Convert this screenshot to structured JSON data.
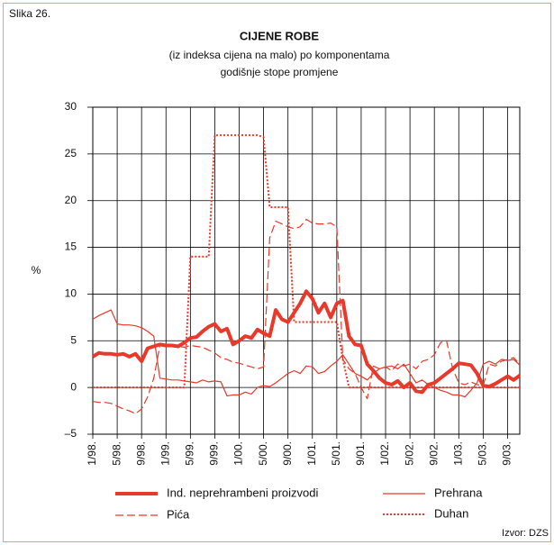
{
  "figure_label": "Slika 26.",
  "source": "Izvor: DZS",
  "chart_data": {
    "type": "line",
    "title": "CIJENE ROBE",
    "subtitle": [
      "(iz indeksa cijena na malo) po komponentama",
      "godišnje stope promjene"
    ],
    "y_label": "%",
    "categories": [
      "1/98.",
      null,
      null,
      null,
      "5/98.",
      null,
      null,
      null,
      "9/98.",
      null,
      null,
      null,
      "1/99.",
      null,
      null,
      null,
      "5/99.",
      null,
      null,
      null,
      "9/99.",
      null,
      null,
      null,
      "1/00.",
      null,
      null,
      null,
      "5/00.",
      null,
      null,
      null,
      "9/00.",
      null,
      null,
      null,
      "1/01.",
      null,
      null,
      null,
      "5/01.",
      null,
      null,
      null,
      "9/01.",
      null,
      null,
      null,
      "1/02.",
      null,
      null,
      null,
      "5/02.",
      null,
      null,
      null,
      "9/02.",
      null,
      null,
      null,
      "1/03.",
      null,
      null,
      null,
      "5/03.",
      null,
      null,
      null,
      "9/03.",
      null,
      null
    ],
    "ylim": [
      -5,
      30
    ],
    "yticks": [
      {
        "value": -5,
        "label": "–5"
      },
      0,
      5,
      10,
      15,
      20,
      25,
      30
    ],
    "grid": true,
    "series": [
      {
        "name": "Ind. neprehrambeni proizvodi",
        "color": "#e8392a",
        "style": "solid",
        "width": 4,
        "values": [
          3.3,
          3.7,
          3.6,
          3.6,
          3.5,
          3.6,
          3.3,
          3.6,
          2.8,
          4.2,
          4.4,
          4.6,
          4.5,
          4.5,
          4.4,
          4.8,
          5.3,
          5.4,
          6.0,
          6.5,
          6.8,
          6.0,
          6.3,
          4.6,
          5.0,
          5.5,
          5.3,
          6.2,
          5.8,
          5.5,
          8.3,
          7.3,
          7.0,
          8.0,
          9.0,
          10.3,
          9.5,
          8.0,
          9.0,
          7.5,
          9.0,
          9.3,
          5.5,
          4.6,
          4.5,
          2.5,
          1.8,
          1.0,
          0.5,
          0.3,
          0.7,
          0.0,
          0.5,
          -0.4,
          -0.5,
          0.3,
          0.5,
          1.0,
          1.5,
          2.0,
          2.6,
          2.5,
          2.4,
          1.5,
          0.2,
          0.1,
          0.4,
          0.8,
          1.2,
          0.8,
          1.3
        ]
      },
      {
        "name": "Pića",
        "color": "#e8392a",
        "style": "dashed",
        "width": 1.2,
        "values": [
          -1.5,
          -1.6,
          -1.6,
          -1.7,
          -2.0,
          -2.3,
          -2.5,
          -2.8,
          -2.3,
          -1.0,
          1.0,
          4.5,
          4.6,
          4.5,
          4.4,
          4.3,
          4.5,
          4.4,
          4.3,
          4.0,
          3.7,
          3.2,
          3.0,
          2.7,
          2.6,
          2.4,
          2.2,
          2.0,
          2.2,
          16.0,
          17.8,
          17.5,
          17.2,
          17.0,
          17.2,
          18.0,
          17.6,
          17.5,
          17.5,
          17.6,
          17.2,
          3.0,
          2.0,
          1.5,
          0.0,
          -1.2,
          2.3,
          2.0,
          2.2,
          1.8,
          2.5,
          2.3,
          2.5,
          2.0,
          2.8,
          3.0,
          3.5,
          4.8,
          5.0,
          2.0,
          0.5,
          0.3,
          0.6,
          0.3,
          0.2,
          2.5,
          2.3,
          2.8,
          3.0,
          3.2,
          2.5
        ]
      },
      {
        "name": "Prehrana",
        "color": "#e8392a",
        "style": "solid",
        "width": 1.2,
        "values": [
          7.3,
          7.7,
          8.0,
          8.3,
          6.8,
          6.7,
          6.7,
          6.6,
          6.4,
          6.0,
          5.5,
          1.0,
          0.9,
          0.8,
          0.8,
          0.7,
          0.6,
          0.5,
          0.8,
          0.6,
          0.7,
          0.6,
          -0.9,
          -0.8,
          -0.8,
          -0.5,
          -0.7,
          0.0,
          0.2,
          0.1,
          0.5,
          1.0,
          1.5,
          1.8,
          1.5,
          2.3,
          2.2,
          1.5,
          1.7,
          2.3,
          2.8,
          3.5,
          2.5,
          1.5,
          1.2,
          0.8,
          1.5,
          2.0,
          2.2,
          2.3,
          2.0,
          2.5,
          1.5,
          0.5,
          0.8,
          0.3,
          0.0,
          -0.3,
          -0.5,
          -0.8,
          -0.8,
          -1.0,
          -0.3,
          0.5,
          2.5,
          2.8,
          2.5,
          3.0,
          2.9,
          3.0,
          2.4
        ]
      },
      {
        "name": "Duhan",
        "color": "#e8392a",
        "style": "dotted",
        "width": 2,
        "values": [
          0,
          0,
          0,
          0,
          0,
          0,
          0,
          0,
          0,
          0,
          0,
          0,
          0,
          0,
          0,
          0,
          14,
          14,
          14,
          14,
          27,
          27,
          27,
          27,
          27,
          27,
          27,
          27,
          26.8,
          19.3,
          19.3,
          19.3,
          19.3,
          7,
          7,
          7,
          7,
          7,
          7,
          7,
          7,
          3,
          0,
          0,
          0,
          0,
          0,
          0,
          0,
          0,
          0,
          0,
          0,
          0,
          0,
          0,
          0,
          0,
          0,
          0,
          0,
          0,
          0,
          0,
          0,
          0,
          0,
          0,
          0,
          0,
          0
        ]
      }
    ]
  }
}
